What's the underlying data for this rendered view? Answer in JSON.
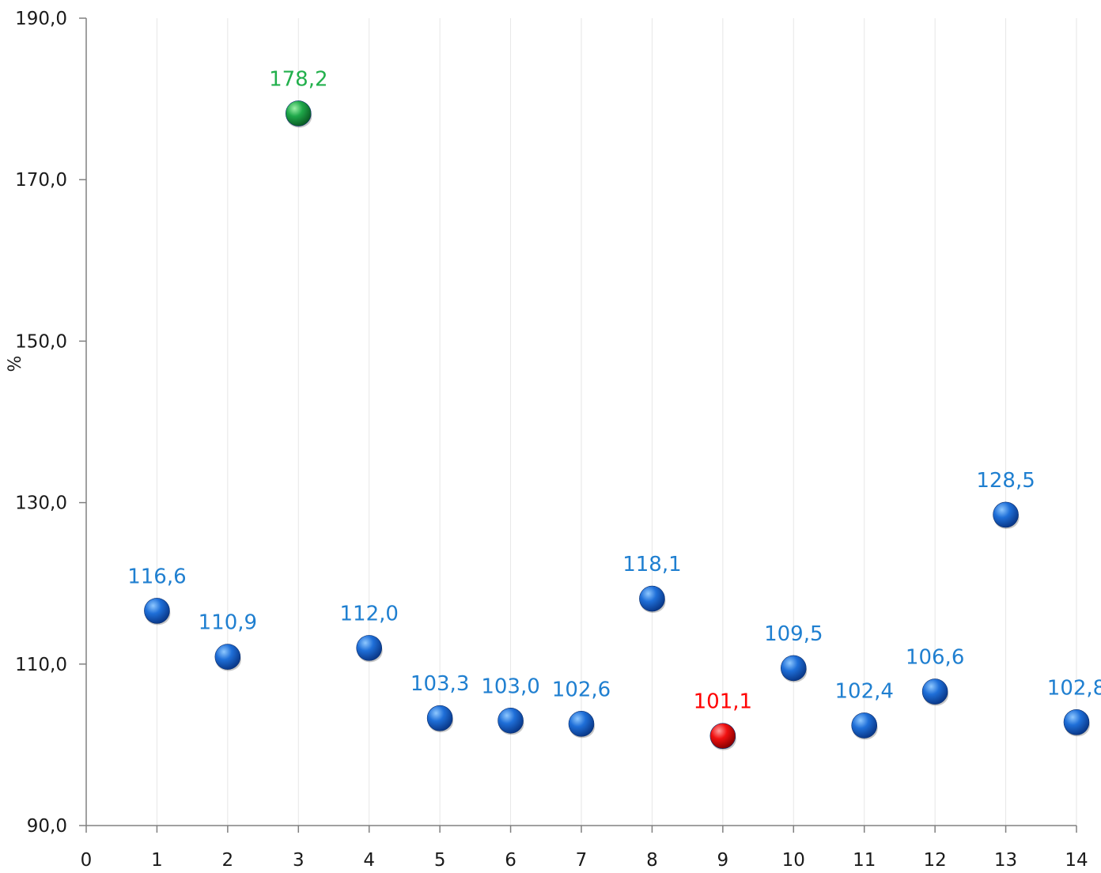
{
  "chart_data": {
    "type": "scatter",
    "title": "",
    "xlabel": "",
    "ylabel": "%",
    "xlim": [
      0,
      14
    ],
    "ylim": [
      90,
      190
    ],
    "x_ticks": [
      0,
      1,
      2,
      3,
      4,
      5,
      6,
      7,
      8,
      9,
      10,
      11,
      12,
      13,
      14
    ],
    "y_ticks": [
      90,
      110,
      130,
      150,
      170,
      190
    ],
    "x_tick_labels": [
      "0",
      "1",
      "2",
      "3",
      "4",
      "5",
      "6",
      "7",
      "8",
      "9",
      "10",
      "11",
      "12",
      "13",
      "14"
    ],
    "y_tick_labels": [
      "90,0",
      "110,0",
      "130,0",
      "150,0",
      "170,0",
      "190,0"
    ],
    "grid": "vertical",
    "legend": "none",
    "default_color": "#1F7FD0",
    "highlight_max_color": "#22B04C",
    "highlight_min_color": "#FF0000",
    "series": [
      {
        "points": [
          {
            "x": 1,
            "y": 116.6,
            "label": "116,6",
            "color": "#1F7FD0",
            "marker": "#1565D8"
          },
          {
            "x": 2,
            "y": 110.9,
            "label": "110,9",
            "color": "#1F7FD0",
            "marker": "#1565D8"
          },
          {
            "x": 3,
            "y": 178.2,
            "label": "178,2",
            "color": "#22B04C",
            "marker": "#1AA84A"
          },
          {
            "x": 4,
            "y": 112.0,
            "label": "112,0",
            "color": "#1F7FD0",
            "marker": "#1565D8"
          },
          {
            "x": 5,
            "y": 103.3,
            "label": "103,3",
            "color": "#1F7FD0",
            "marker": "#1565D8"
          },
          {
            "x": 6,
            "y": 103.0,
            "label": "103,0",
            "color": "#1F7FD0",
            "marker": "#1565D8"
          },
          {
            "x": 7,
            "y": 102.6,
            "label": "102,6",
            "color": "#1F7FD0",
            "marker": "#1565D8"
          },
          {
            "x": 8,
            "y": 118.1,
            "label": "118,1",
            "color": "#1F7FD0",
            "marker": "#1565D8"
          },
          {
            "x": 9,
            "y": 101.1,
            "label": "101,1",
            "color": "#FF0000",
            "marker": "#F01010"
          },
          {
            "x": 10,
            "y": 109.5,
            "label": "109,5",
            "color": "#1F7FD0",
            "marker": "#1565D8"
          },
          {
            "x": 11,
            "y": 102.4,
            "label": "102,4",
            "color": "#1F7FD0",
            "marker": "#1565D8"
          },
          {
            "x": 12,
            "y": 106.6,
            "label": "106,6",
            "color": "#1F7FD0",
            "marker": "#1565D8"
          },
          {
            "x": 13,
            "y": 128.5,
            "label": "128,5",
            "color": "#1F7FD0",
            "marker": "#1565D8"
          },
          {
            "x": 14,
            "y": 102.8,
            "label": "102,8",
            "color": "#1F7FD0",
            "marker": "#1565D8"
          }
        ]
      }
    ]
  }
}
